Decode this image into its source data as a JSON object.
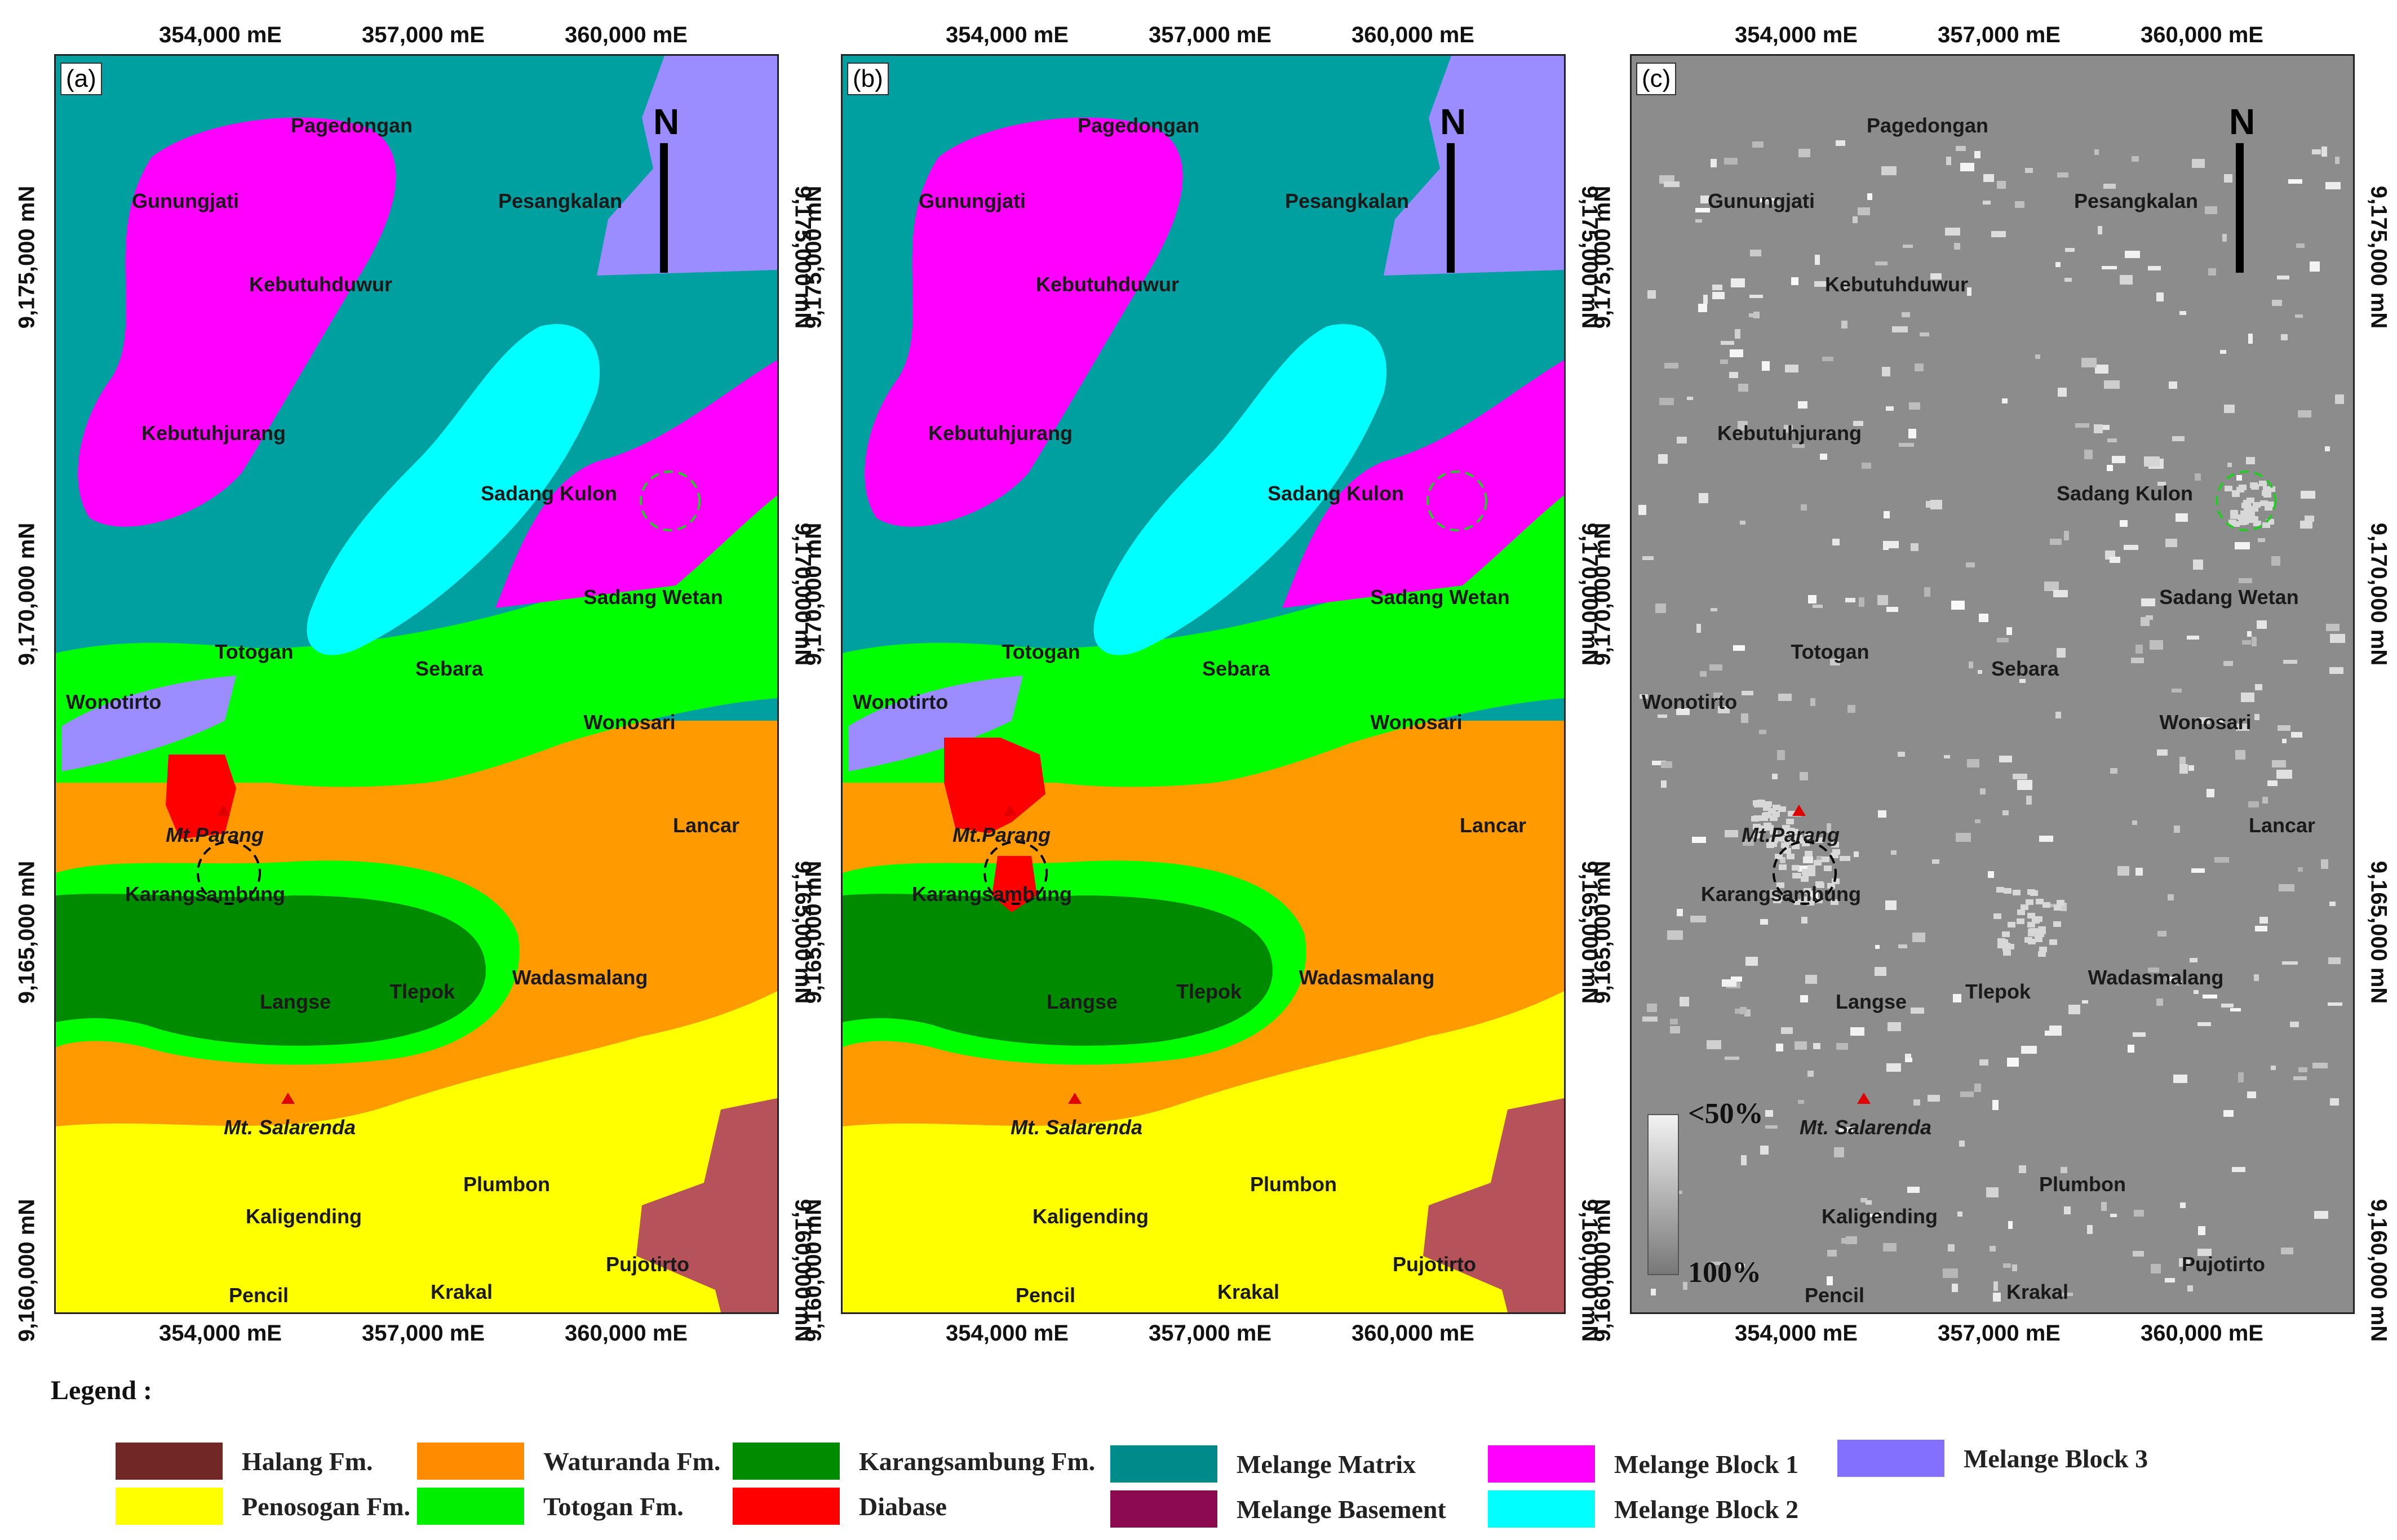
{
  "panels": [
    {
      "id": "a",
      "label": "(a)",
      "mode": "map"
    },
    {
      "id": "b",
      "label": "(b)",
      "mode": "map"
    },
    {
      "id": "c",
      "label": "(c)",
      "mode": "diff"
    }
  ],
  "x_ticks": [
    "354,000 mE",
    "357,000 mE",
    "360,000 mE"
  ],
  "y_ticks": [
    "9,175,000 mN",
    "9,170,000 mN",
    "9,165,000 mN",
    "9,160,000 mN"
  ],
  "places": {
    "pagedongan": "Pagedongan",
    "gunungjati": "Gunungjati",
    "pesangkalan": "Pesangkalan",
    "kebutuhduwur": "Kebutuhduwur",
    "kebutuhjurang": "Kebutuhjurang",
    "sadang_kulon": "Sadang Kulon",
    "sadang_wetan": "Sadang Wetan",
    "totogan": "Totogan",
    "sebara": "Sebara",
    "wonotirto": "Wonotirto",
    "wonosari": "Wonosari",
    "lancar": "Lancar",
    "mt_parang": "Mt.Parang",
    "karangsambung": "Karangsambung",
    "langse": "Langse",
    "tlepok": "Tlepok",
    "wadasmalang": "Wadasmalang",
    "mt_salarenda": "Mt. Salarenda",
    "plumbon": "Plumbon",
    "kaligending": "Kaligending",
    "pujotirto": "Pujotirto",
    "pencil": "Pencil",
    "krakal": "Krakal"
  },
  "north_label": "N",
  "scale_labels": {
    "top": "<50%",
    "bottom": "100%"
  },
  "legend_title": "Legend :",
  "legend": [
    {
      "label": "Halang Fm.",
      "color": "#722727"
    },
    {
      "label": "Penosogan Fm.",
      "color": "#ffff00"
    },
    {
      "label": "Waturanda Fm.",
      "color": "#ff8c00"
    },
    {
      "label": "Totogan Fm.",
      "color": "#00ee00"
    },
    {
      "label": "Karangsambung Fm.",
      "color": "#008c00"
    },
    {
      "label": "Diabase",
      "color": "#ff0000"
    },
    {
      "label": "Melange Matrix",
      "color": "#008b8b"
    },
    {
      "label": "Melange Basement",
      "color": "#8b0a50"
    },
    {
      "label": "Melange Block 1",
      "color": "#ff00ff"
    },
    {
      "label": "Melange Block 2",
      "color": "#00ffff"
    },
    {
      "label": "Melange Block 3",
      "color": "#8470ff"
    }
  ],
  "colors": {
    "matrix": "#00a0a0",
    "block1": "#ff00ff",
    "block2": "#00ffff",
    "block3": "#9b8cff",
    "totogan": "#00ff00",
    "waturanda": "#ff9a00",
    "karangsambung": "#008a00",
    "penosogan": "#ffff00",
    "halang": "#b5525a",
    "diabase": "#ff0000",
    "diff_bg": "#8c8c8c",
    "marker": "#e00000",
    "circle_green": "#22cc22",
    "circle_black": "#000000"
  }
}
